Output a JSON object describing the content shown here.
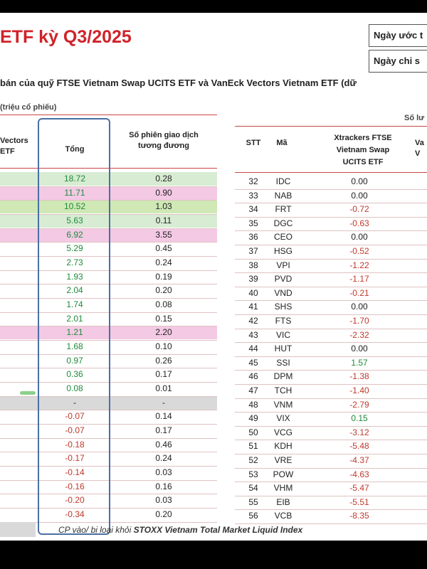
{
  "title": "ETF kỳ Q3/2025",
  "dates": {
    "estimate_label": "Ngày ước t",
    "official_label": "Ngày chi s"
  },
  "subtitle": "bán của quỹ FTSE Vietnam Swap UCITS ETF và VanEck Vectors Vietnam ETF (dữ",
  "left_table": {
    "group_header": "(triệu cổ phiếu)",
    "columns": {
      "vaneck": "Vectors\nETF",
      "total": "Tổng",
      "sessions": "Số phiên giao dịch\ntương đương"
    },
    "rows": [
      {
        "total": "18.72",
        "sessions": "0.28"
      },
      {
        "total": "11.71",
        "sessions": "0.90"
      },
      {
        "total": "10.52",
        "sessions": "1.03"
      },
      {
        "total": "5.63",
        "sessions": "0.11"
      },
      {
        "total": "6.92",
        "sessions": "3.55"
      },
      {
        "total": "5.29",
        "sessions": "0.45"
      },
      {
        "total": "2.73",
        "sessions": "0.24"
      },
      {
        "total": "1.93",
        "sessions": "0.19"
      },
      {
        "total": "2.04",
        "sessions": "0.20"
      },
      {
        "total": "1.74",
        "sessions": "0.08"
      },
      {
        "total": "2.01",
        "sessions": "0.15"
      },
      {
        "total": "1.21",
        "sessions": "2.20"
      },
      {
        "total": "1.68",
        "sessions": "0.10"
      },
      {
        "total": "0.97",
        "sessions": "0.26"
      },
      {
        "total": "0.36",
        "sessions": "0.17"
      },
      {
        "total": "0.08",
        "sessions": "0.01"
      },
      {
        "total": "-",
        "sessions": "-"
      },
      {
        "total": "-0.07",
        "sessions": "0.14"
      },
      {
        "total": "-0.07",
        "sessions": "0.17"
      },
      {
        "total": "-0.18",
        "sessions": "0.46"
      },
      {
        "total": "-0.17",
        "sessions": "0.24"
      },
      {
        "total": "-0.14",
        "sessions": "0.03"
      },
      {
        "total": "-0.16",
        "sessions": "0.16"
      },
      {
        "total": "-0.20",
        "sessions": "0.03"
      },
      {
        "total": "-0.34",
        "sessions": "0.20"
      }
    ],
    "highlights": [
      "#d7ecd2",
      "#f3c9e4",
      "#cfe8b5",
      "#d7ecd2",
      "#f3c9e4",
      "",
      "",
      "",
      "",
      "",
      "",
      "#f3c9e4",
      "",
      "",
      "",
      "",
      "#d9d9d9"
    ]
  },
  "right_table": {
    "group_header": "Số lư",
    "columns": {
      "stt": "STT",
      "ma": "Mã",
      "xtrackers": "Xtrackers FTSE\nVietnam Swap\nUCITS ETF",
      "next": "Va\nV"
    },
    "rows": [
      {
        "stt": "32",
        "ma": "IDC",
        "value": "0.00"
      },
      {
        "stt": "33",
        "ma": "NAB",
        "value": "0.00"
      },
      {
        "stt": "34",
        "ma": "FRT",
        "value": "-0.72"
      },
      {
        "stt": "35",
        "ma": "DGC",
        "value": "-0.63"
      },
      {
        "stt": "36",
        "ma": "CEO",
        "value": "0.00"
      },
      {
        "stt": "37",
        "ma": "HSG",
        "value": "-0.52"
      },
      {
        "stt": "38",
        "ma": "VPI",
        "value": "-1.22"
      },
      {
        "stt": "39",
        "ma": "PVD",
        "value": "-1.17"
      },
      {
        "stt": "40",
        "ma": "VND",
        "value": "-0.21"
      },
      {
        "stt": "41",
        "ma": "SHS",
        "value": "0.00"
      },
      {
        "stt": "42",
        "ma": "FTS",
        "value": "-1.70"
      },
      {
        "stt": "43",
        "ma": "VIC",
        "value": "-2.32"
      },
      {
        "stt": "44",
        "ma": "HUT",
        "value": "0.00"
      },
      {
        "stt": "45",
        "ma": "SSI",
        "value": "1.57"
      },
      {
        "stt": "46",
        "ma": "DPM",
        "value": "-1.38"
      },
      {
        "stt": "47",
        "ma": "TCH",
        "value": "-1.40"
      },
      {
        "stt": "48",
        "ma": "VNM",
        "value": "-2.79"
      },
      {
        "stt": "49",
        "ma": "VIX",
        "value": "0.15"
      },
      {
        "stt": "50",
        "ma": "VCG",
        "value": "-3.12"
      },
      {
        "stt": "51",
        "ma": "KDH",
        "value": "-5.48"
      },
      {
        "stt": "52",
        "ma": "VRE",
        "value": "-4.37"
      },
      {
        "stt": "53",
        "ma": "POW",
        "value": "-4.63"
      },
      {
        "stt": "54",
        "ma": "VHM",
        "value": "-5.47"
      },
      {
        "stt": "55",
        "ma": "EIB",
        "value": "-5.51"
      },
      {
        "stt": "56",
        "ma": "VCB",
        "value": "-8.35"
      }
    ]
  },
  "footer": {
    "prefix": "CP vào/ bị loại khỏi ",
    "index_name": "STOXX Vietnam Total Market Liquid Index"
  },
  "colors": {
    "title": "#d0222a",
    "negative": "#c0392b",
    "positive": "#1f8a3a",
    "focus_border": "#4a6fa5"
  }
}
